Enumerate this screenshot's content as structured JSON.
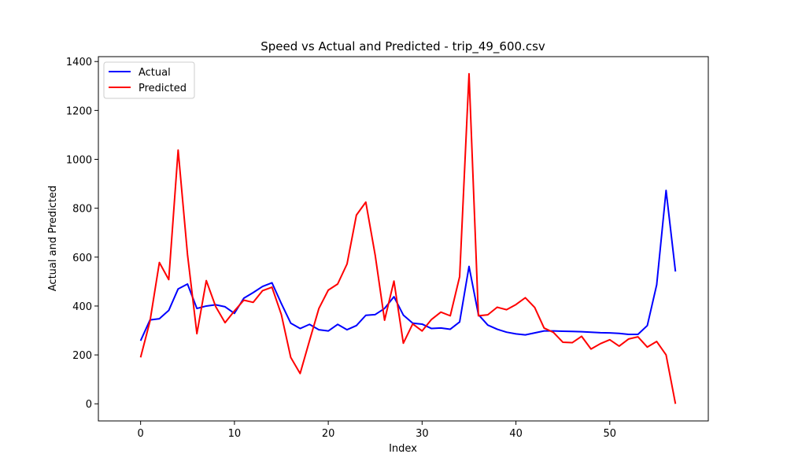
{
  "chart_data": {
    "type": "line",
    "title": "Speed vs Actual and Predicted - trip_49_600.csv",
    "xlabel": "Index",
    "ylabel": "Actual and Predicted",
    "xlim": [
      -4.5,
      60.5
    ],
    "ylim": [
      -70,
      1420
    ],
    "xticks": [
      0,
      10,
      20,
      30,
      40,
      50
    ],
    "yticks": [
      0,
      200,
      400,
      600,
      800,
      1000,
      1200,
      1400
    ],
    "grid": false,
    "legend": "top-left",
    "x": [
      0,
      1,
      2,
      3,
      4,
      5,
      6,
      7,
      8,
      9,
      10,
      11,
      12,
      13,
      14,
      15,
      16,
      17,
      18,
      19,
      20,
      21,
      22,
      23,
      24,
      25,
      26,
      27,
      28,
      29,
      30,
      31,
      32,
      33,
      34,
      35,
      36,
      37,
      38,
      39,
      40,
      41,
      42,
      43,
      44,
      45,
      46,
      47,
      48,
      49,
      50,
      51,
      52,
      53,
      54,
      55,
      56,
      57
    ],
    "series": [
      {
        "name": "Actual",
        "color": "#0000ff",
        "values": [
          258,
          343,
          348,
          382,
          470,
          490,
          390,
          400,
          405,
          397,
          370,
          432,
          455,
          480,
          495,
          410,
          330,
          308,
          325,
          303,
          298,
          325,
          303,
          320,
          362,
          365,
          390,
          438,
          363,
          330,
          326,
          308,
          310,
          305,
          335,
          562,
          365,
          322,
          305,
          293,
          286,
          282,
          290,
          298,
          298,
          297,
          296,
          295,
          293,
          291,
          290,
          288,
          284,
          284,
          320,
          487,
          873,
          541
        ]
      },
      {
        "name": "Predicted",
        "color": "#ff0000",
        "values": [
          190,
          338,
          578,
          508,
          1038,
          610,
          287,
          504,
          398,
          332,
          380,
          424,
          415,
          463,
          477,
          365,
          190,
          124,
          258,
          390,
          465,
          490,
          572,
          772,
          825,
          608,
          342,
          502,
          248,
          327,
          298,
          345,
          375,
          360,
          520,
          1350,
          360,
          364,
          395,
          385,
          406,
          434,
          394,
          310,
          292,
          252,
          250,
          276,
          224,
          246,
          262,
          236,
          265,
          274,
          232,
          255,
          200,
          0
        ]
      }
    ]
  }
}
